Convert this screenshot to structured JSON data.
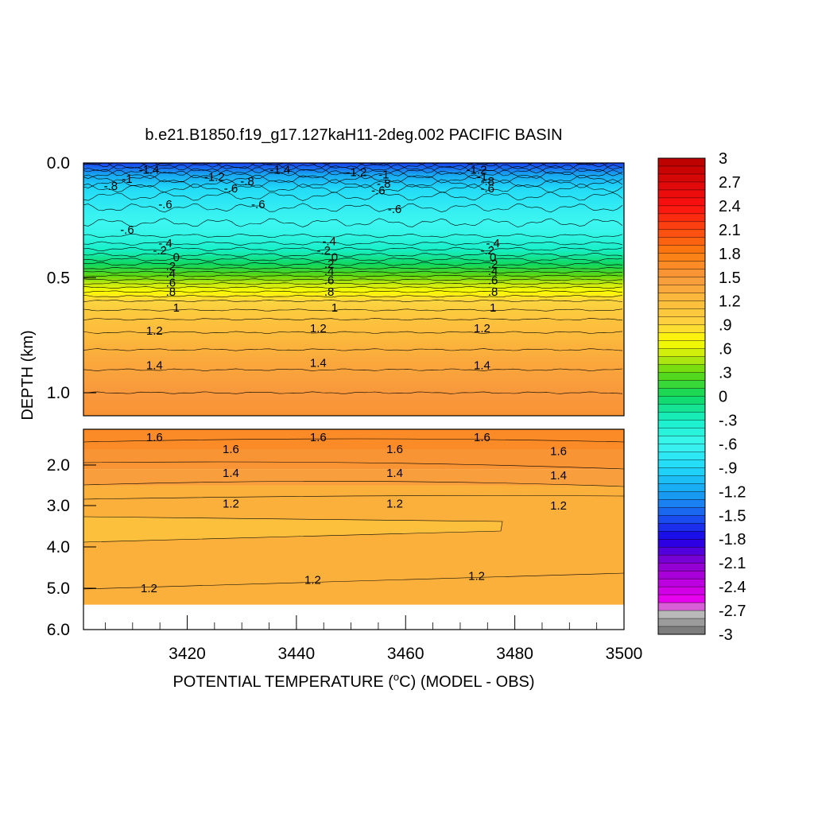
{
  "chart_data": {
    "type": "heatmap",
    "title": "b.e21.B1850.f19_g17.127kaH11-2deg.002 PACIFIC BASIN",
    "xlabel": "POTENTIAL TEMPERATURE (",
    "xlabel_sup": "o",
    "xlabel_tail": "C) (MODEL - OBS)",
    "ylabel": "DEPTH (km)",
    "xlim": [
      3401,
      3500
    ],
    "x_ticks": [
      "3420",
      "3440",
      "3460",
      "3480",
      "3500"
    ],
    "upper_panel": {
      "ylim": [
        0,
        1.1
      ],
      "y_ticks": [
        "0.0",
        "0.5",
        "1.0"
      ],
      "profile": [
        {
          "depth": 0.0,
          "value": -1.6
        },
        {
          "depth": 0.05,
          "value": -1.2
        },
        {
          "depth": 0.12,
          "value": -0.85
        },
        {
          "depth": 0.22,
          "value": -0.65
        },
        {
          "depth": 0.3,
          "value": -0.55
        },
        {
          "depth": 0.35,
          "value": -0.4
        },
        {
          "depth": 0.4,
          "value": -0.2
        },
        {
          "depth": 0.45,
          "value": 0.05
        },
        {
          "depth": 0.5,
          "value": 0.35
        },
        {
          "depth": 0.55,
          "value": 0.65
        },
        {
          "depth": 0.6,
          "value": 0.9
        },
        {
          "depth": 0.7,
          "value": 1.15
        },
        {
          "depth": 0.85,
          "value": 1.35
        },
        {
          "depth": 1.0,
          "value": 1.5
        },
        {
          "depth": 1.1,
          "value": 1.55
        }
      ],
      "contour_labels": [
        {
          "text": "-1.4",
          "x": 3413,
          "depth": 0.03
        },
        {
          "text": "-1.2",
          "x": 3425,
          "depth": 0.06
        },
        {
          "text": "-1",
          "x": 3409,
          "depth": 0.07
        },
        {
          "text": "-.8",
          "x": 3406,
          "depth": 0.1
        },
        {
          "text": "-.6",
          "x": 3428,
          "depth": 0.11
        },
        {
          "text": "-.8",
          "x": 3431,
          "depth": 0.08
        },
        {
          "text": "-1.4",
          "x": 3437,
          "depth": 0.03
        },
        {
          "text": "-1.2",
          "x": 3451,
          "depth": 0.04
        },
        {
          "text": "-1",
          "x": 3456,
          "depth": 0.05
        },
        {
          "text": "-.8",
          "x": 3456,
          "depth": 0.09
        },
        {
          "text": "-.6",
          "x": 3455,
          "depth": 0.12
        },
        {
          "text": "-.6",
          "x": 3416,
          "depth": 0.18
        },
        {
          "text": "-.6",
          "x": 3433,
          "depth": 0.18
        },
        {
          "text": "-.6",
          "x": 3458,
          "depth": 0.2
        },
        {
          "text": "-.6",
          "x": 3409,
          "depth": 0.29
        },
        {
          "text": "-1.2",
          "x": 3473,
          "depth": 0.03
        },
        {
          "text": "-1",
          "x": 3474,
          "depth": 0.06
        },
        {
          "text": "-.8",
          "x": 3475,
          "depth": 0.08
        },
        {
          "text": "-.6",
          "x": 3475,
          "depth": 0.11
        },
        {
          "text": "-.4",
          "x": 3416,
          "depth": 0.35
        },
        {
          "text": "-.2",
          "x": 3415,
          "depth": 0.38
        },
        {
          "text": "0",
          "x": 3418,
          "depth": 0.41
        },
        {
          "text": ".2",
          "x": 3417,
          "depth": 0.45
        },
        {
          "text": ".4",
          "x": 3417,
          "depth": 0.48
        },
        {
          "text": ".6",
          "x": 3417,
          "depth": 0.52
        },
        {
          "text": ".8",
          "x": 3417,
          "depth": 0.56
        },
        {
          "text": "1",
          "x": 3418,
          "depth": 0.63
        },
        {
          "text": "-.4",
          "x": 3446,
          "depth": 0.34
        },
        {
          "text": "-.2",
          "x": 3445,
          "depth": 0.38
        },
        {
          "text": "0",
          "x": 3447,
          "depth": 0.41
        },
        {
          "text": ".2",
          "x": 3446,
          "depth": 0.44
        },
        {
          "text": ".4",
          "x": 3446,
          "depth": 0.47
        },
        {
          "text": ".6",
          "x": 3446,
          "depth": 0.51
        },
        {
          "text": ".8",
          "x": 3446,
          "depth": 0.56
        },
        {
          "text": "1",
          "x": 3447,
          "depth": 0.63
        },
        {
          "text": "-.4",
          "x": 3476,
          "depth": 0.35
        },
        {
          "text": "-.2",
          "x": 3475,
          "depth": 0.38
        },
        {
          "text": "0",
          "x": 3476,
          "depth": 0.41
        },
        {
          "text": ".2",
          "x": 3476,
          "depth": 0.44
        },
        {
          "text": ".4",
          "x": 3476,
          "depth": 0.47
        },
        {
          "text": ".6",
          "x": 3476,
          "depth": 0.51
        },
        {
          "text": ".8",
          "x": 3476,
          "depth": 0.56
        },
        {
          "text": "1",
          "x": 3476,
          "depth": 0.63
        },
        {
          "text": "1.2",
          "x": 3414,
          "depth": 0.73
        },
        {
          "text": "1.2",
          "x": 3444,
          "depth": 0.72
        },
        {
          "text": "1.2",
          "x": 3474,
          "depth": 0.72
        },
        {
          "text": "1.4",
          "x": 3414,
          "depth": 0.88
        },
        {
          "text": "1.4",
          "x": 3444,
          "depth": 0.87
        },
        {
          "text": "1.4",
          "x": 3474,
          "depth": 0.88
        }
      ]
    },
    "lower_panel": {
      "ylim": [
        1.1,
        6.0
      ],
      "y_ticks": [
        "2.0",
        "3.0",
        "4.0",
        "5.0",
        "6.0"
      ],
      "y_tick_values": [
        2.0,
        3.0,
        4.0,
        5.0,
        6.0
      ],
      "data_bottom_depth": 5.4,
      "bands": [
        {
          "from": 1.1,
          "to": 1.6,
          "value": 1.65
        },
        {
          "from": 1.6,
          "to": 2.1,
          "value": 1.55
        },
        {
          "from": 2.1,
          "to": 2.5,
          "value": 1.45
        },
        {
          "from": 2.5,
          "to": 5.4,
          "value": 1.3
        }
      ],
      "contour_labels": [
        {
          "text": "1.6",
          "x": 3414,
          "depth": 1.3
        },
        {
          "text": "1.6",
          "x": 3444,
          "depth": 1.3
        },
        {
          "text": "1.6",
          "x": 3474,
          "depth": 1.3
        },
        {
          "text": "1.6",
          "x": 3428,
          "depth": 1.6
        },
        {
          "text": "1.6",
          "x": 3458,
          "depth": 1.6
        },
        {
          "text": "1.6",
          "x": 3488,
          "depth": 1.65
        },
        {
          "text": "1.4",
          "x": 3428,
          "depth": 2.2
        },
        {
          "text": "1.4",
          "x": 3458,
          "depth": 2.2
        },
        {
          "text": "1.4",
          "x": 3488,
          "depth": 2.25
        },
        {
          "text": "1.2",
          "x": 3428,
          "depth": 2.95
        },
        {
          "text": "1.2",
          "x": 3458,
          "depth": 2.95
        },
        {
          "text": "1.2",
          "x": 3488,
          "depth": 3.0
        },
        {
          "text": "1.2",
          "x": 3413,
          "depth": 5.0
        },
        {
          "text": "1.2",
          "x": 3443,
          "depth": 4.8
        },
        {
          "text": "1.2",
          "x": 3473,
          "depth": 4.7
        }
      ]
    },
    "colorbar": {
      "min": -3,
      "max": 3,
      "labels": [
        "3",
        "2.7",
        "2.4",
        "2.1",
        "1.8",
        "1.5",
        "1.2",
        ".9",
        ".6",
        ".3",
        "0",
        "-.3",
        "-.6",
        "-.9",
        "-1.2",
        "-1.5",
        "-1.8",
        "-2.1",
        "-2.4",
        "-2.7",
        "-3"
      ],
      "label_values": [
        3,
        2.7,
        2.4,
        2.1,
        1.8,
        1.5,
        1.2,
        0.9,
        0.6,
        0.3,
        0,
        -0.3,
        -0.6,
        -0.9,
        -1.2,
        -1.5,
        -1.8,
        -2.1,
        -2.4,
        -2.7,
        -3
      ],
      "stops": [
        {
          "v": -3.0,
          "c": "#6e6e6e"
        },
        {
          "v": -2.7,
          "c": "#bdbdbd"
        },
        {
          "v": -2.6,
          "c": "#f000f0"
        },
        {
          "v": -2.1,
          "c": "#8a00d0"
        },
        {
          "v": -1.8,
          "c": "#1a00e8"
        },
        {
          "v": -1.5,
          "c": "#1a5cf0"
        },
        {
          "v": -1.2,
          "c": "#18a6f2"
        },
        {
          "v": -0.9,
          "c": "#20d8f8"
        },
        {
          "v": -0.6,
          "c": "#3cf6f0"
        },
        {
          "v": -0.3,
          "c": "#18f0c8"
        },
        {
          "v": 0.0,
          "c": "#10d860"
        },
        {
          "v": 0.3,
          "c": "#60d810"
        },
        {
          "v": 0.5,
          "c": "#c4ea10"
        },
        {
          "v": 0.7,
          "c": "#fcfc00"
        },
        {
          "v": 0.9,
          "c": "#fcd440"
        },
        {
          "v": 1.2,
          "c": "#fcbc3c"
        },
        {
          "v": 1.5,
          "c": "#f8983c"
        },
        {
          "v": 1.8,
          "c": "#fc7e10"
        },
        {
          "v": 2.1,
          "c": "#fc4810"
        },
        {
          "v": 2.4,
          "c": "#fc1010"
        },
        {
          "v": 2.7,
          "c": "#dc0808"
        },
        {
          "v": 3.0,
          "c": "#b80000"
        }
      ]
    }
  }
}
